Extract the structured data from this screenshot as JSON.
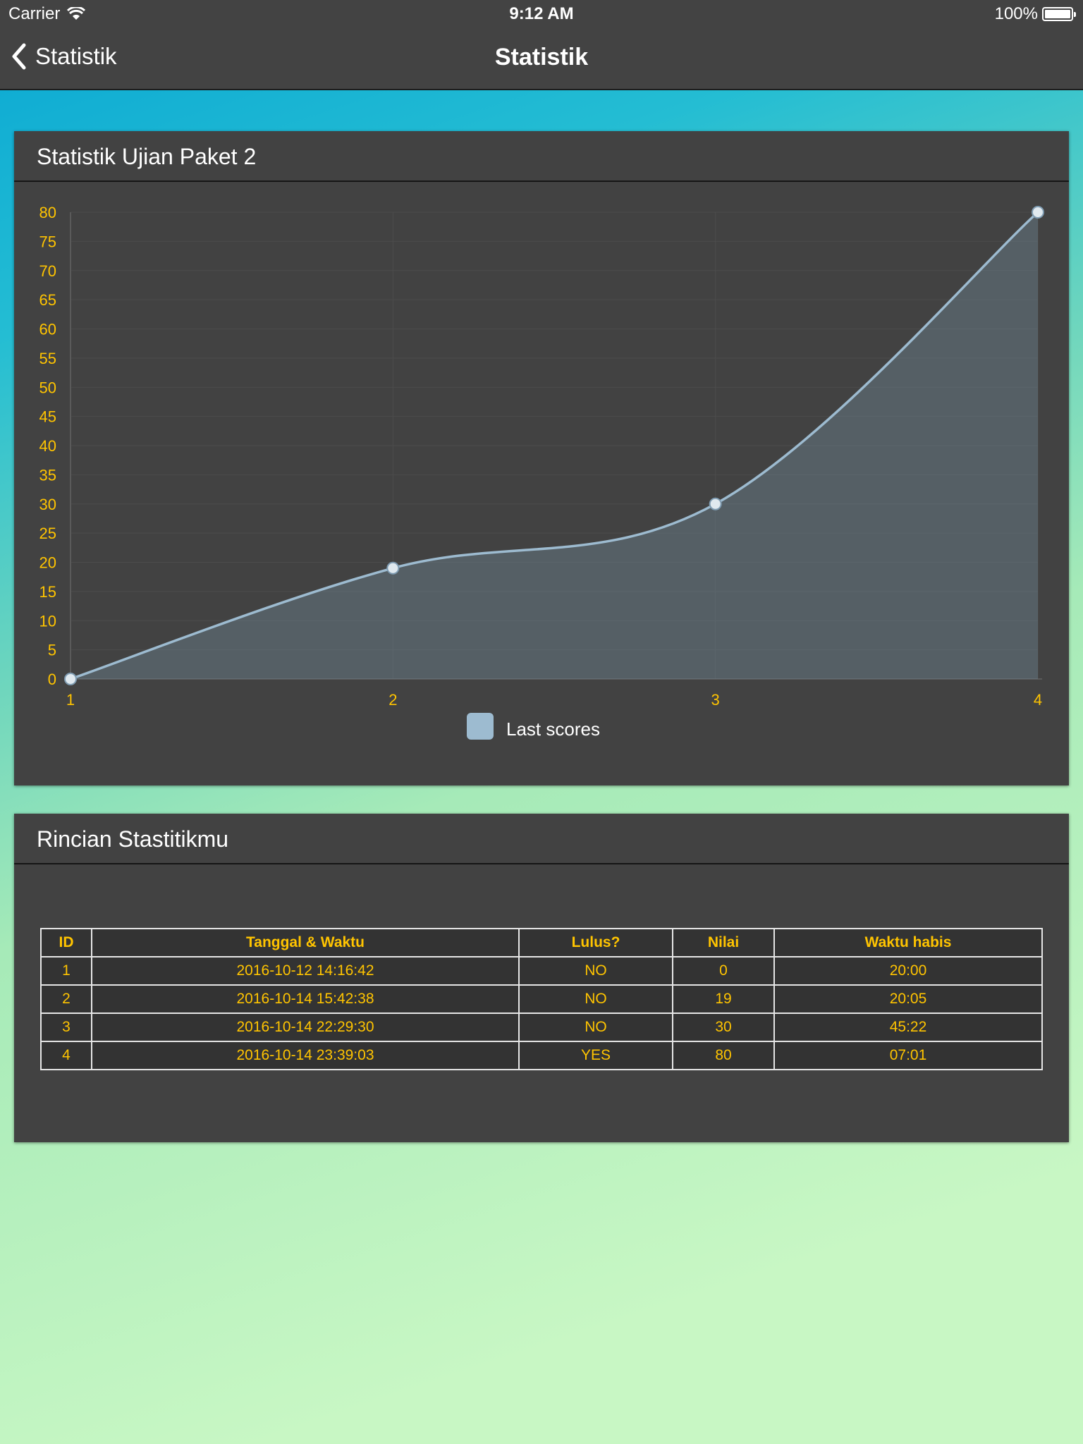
{
  "colors": {
    "accent_yellow": "#ffc400",
    "line_color": "#9dbbd0",
    "card_background": "#424242"
  },
  "status_bar": {
    "carrier": "Carrier",
    "time": "9:12 AM",
    "battery": "100%",
    "battery_level": 1.0
  },
  "nav": {
    "back_label": "Statistik",
    "title": "Statistik",
    "back_icon": "chevron-left-icon"
  },
  "chart_card": {
    "title": "Statistik Ujian Paket 2"
  },
  "chart_data": {
    "type": "line",
    "x": [
      1,
      2,
      3,
      4
    ],
    "series": [
      {
        "name": "Last scores",
        "values": [
          0,
          19,
          30,
          80
        ]
      }
    ],
    "xlabel": "",
    "ylabel": "",
    "ylim": [
      0,
      80
    ],
    "y_ticks": [
      0,
      5,
      10,
      15,
      20,
      25,
      30,
      35,
      40,
      45,
      50,
      55,
      60,
      65,
      70,
      75,
      80
    ],
    "x_ticks": [
      1,
      2,
      3,
      4
    ],
    "grid": true,
    "filled_area": true,
    "legend_position": "bottom-center"
  },
  "table_card": {
    "title": "Rincian Stastitikmu",
    "columns": [
      "ID",
      "Tanggal & Waktu",
      "Lulus?",
      "Nilai",
      "Waktu habis"
    ],
    "rows": [
      [
        "1",
        "2016-10-12 14:16:42",
        "NO",
        "0",
        "20:00"
      ],
      [
        "2",
        "2016-10-14 15:42:38",
        "NO",
        "19",
        "20:05"
      ],
      [
        "3",
        "2016-10-14 22:29:30",
        "NO",
        "30",
        "45:22"
      ],
      [
        "4",
        "2016-10-14 23:39:03",
        "YES",
        "80",
        "07:01"
      ]
    ]
  }
}
